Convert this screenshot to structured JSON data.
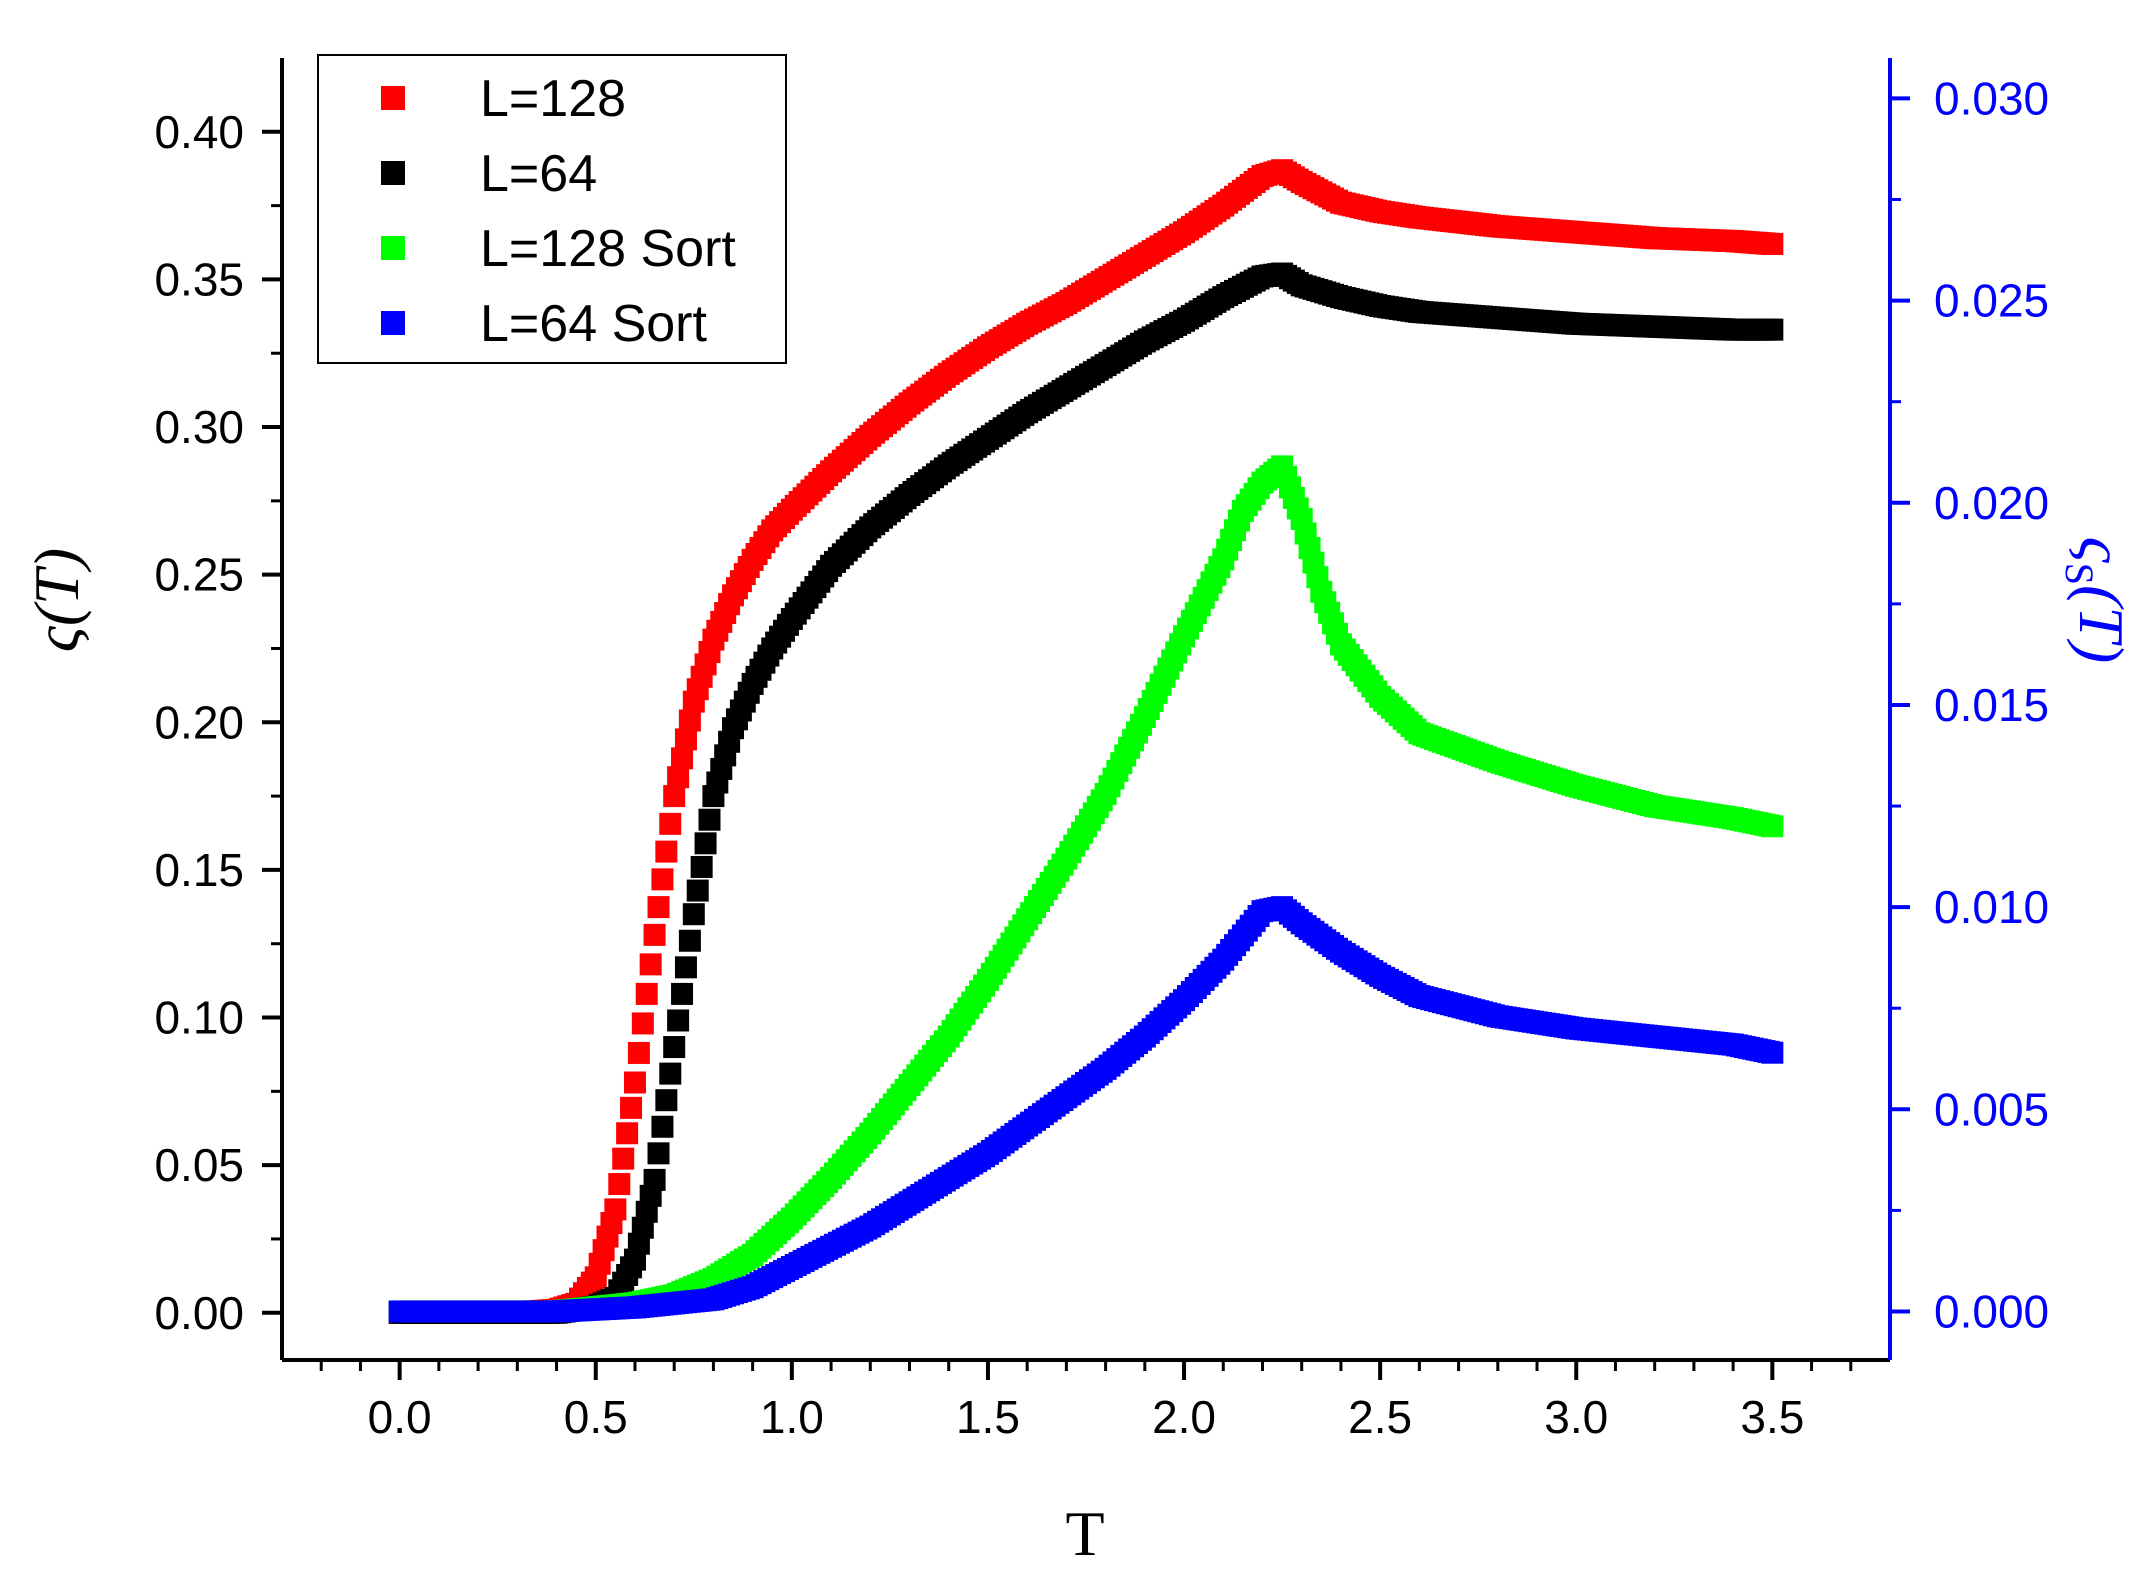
{
  "chart_data": {
    "type": "scatter",
    "title": "",
    "xlabel": "T",
    "ylabel_left": "ς(T)",
    "ylabel_right": "ς",
    "ylabel_right_subscript": "S",
    "ylabel_right_suffix": "(T)",
    "xlim": [
      -0.3,
      3.8
    ],
    "ylim_left": [
      -0.016,
      0.425
    ],
    "ylim_right": [
      -0.0012,
      0.031
    ],
    "x_ticks": [
      "0.0",
      "0.5",
      "1.0",
      "1.5",
      "2.0",
      "2.5",
      "3.0",
      "3.5"
    ],
    "x_tick_values": [
      0.0,
      0.5,
      1.0,
      1.5,
      2.0,
      2.5,
      3.0,
      3.5
    ],
    "y_left_ticks": [
      "0.00",
      "0.05",
      "0.10",
      "0.15",
      "0.20",
      "0.25",
      "0.30",
      "0.35",
      "0.40"
    ],
    "y_left_tick_values": [
      0.0,
      0.05,
      0.1,
      0.15,
      0.2,
      0.25,
      0.3,
      0.35,
      0.4
    ],
    "y_right_ticks": [
      "0.000",
      "0.005",
      "0.010",
      "0.015",
      "0.020",
      "0.025",
      "0.030"
    ],
    "y_right_tick_values": [
      0.0,
      0.005,
      0.01,
      0.015,
      0.02,
      0.025,
      0.03
    ],
    "legend_position": "top-left",
    "colors": {
      "right_axis": "#0000ff",
      "axis": "#000000"
    },
    "series": [
      {
        "name": "L=128",
        "axis": "left",
        "color": "#ff0000",
        "x": [
          0.0,
          0.2,
          0.3,
          0.4,
          0.45,
          0.5,
          0.55,
          0.6,
          0.65,
          0.7,
          0.75,
          0.8,
          0.85,
          0.9,
          0.95,
          1.0,
          1.1,
          1.2,
          1.3,
          1.4,
          1.5,
          1.6,
          1.7,
          1.8,
          1.9,
          2.0,
          2.1,
          2.2,
          2.25,
          2.3,
          2.4,
          2.5,
          2.6,
          2.8,
          3.0,
          3.2,
          3.4,
          3.5
        ],
        "y": [
          0.0,
          0.0,
          0.0,
          0.001,
          0.003,
          0.012,
          0.035,
          0.078,
          0.128,
          0.175,
          0.207,
          0.228,
          0.243,
          0.255,
          0.265,
          0.272,
          0.285,
          0.297,
          0.308,
          0.318,
          0.327,
          0.335,
          0.342,
          0.35,
          0.358,
          0.366,
          0.375,
          0.385,
          0.387,
          0.383,
          0.376,
          0.373,
          0.371,
          0.368,
          0.366,
          0.364,
          0.363,
          0.362
        ]
      },
      {
        "name": "L=64",
        "axis": "left",
        "color": "#000000",
        "x": [
          0.0,
          0.2,
          0.4,
          0.5,
          0.55,
          0.6,
          0.65,
          0.7,
          0.75,
          0.8,
          0.85,
          0.9,
          0.95,
          1.0,
          1.1,
          1.2,
          1.3,
          1.4,
          1.5,
          1.6,
          1.7,
          1.8,
          1.9,
          2.0,
          2.1,
          2.2,
          2.25,
          2.3,
          2.4,
          2.5,
          2.6,
          2.8,
          3.0,
          3.2,
          3.4,
          3.5
        ],
        "y": [
          0.0,
          0.0,
          0.0,
          0.002,
          0.005,
          0.018,
          0.045,
          0.09,
          0.135,
          0.175,
          0.198,
          0.213,
          0.225,
          0.235,
          0.253,
          0.266,
          0.277,
          0.287,
          0.296,
          0.305,
          0.313,
          0.321,
          0.329,
          0.336,
          0.344,
          0.351,
          0.352,
          0.348,
          0.344,
          0.341,
          0.339,
          0.337,
          0.335,
          0.334,
          0.333,
          0.333
        ]
      },
      {
        "name": "L=128 Sort",
        "axis": "right",
        "color": "#00ff00",
        "x": [
          0.0,
          0.2,
          0.4,
          0.5,
          0.6,
          0.7,
          0.8,
          0.9,
          1.0,
          1.1,
          1.2,
          1.3,
          1.4,
          1.5,
          1.6,
          1.7,
          1.8,
          1.9,
          2.0,
          2.1,
          2.15,
          2.2,
          2.25,
          2.3,
          2.35,
          2.4,
          2.5,
          2.6,
          2.8,
          3.0,
          3.2,
          3.4,
          3.5
        ],
        "y": [
          0.0,
          0.0,
          0.0,
          0.0001,
          0.0002,
          0.0004,
          0.0008,
          0.0014,
          0.0023,
          0.0033,
          0.0044,
          0.0056,
          0.0068,
          0.0082,
          0.0097,
          0.0112,
          0.0128,
          0.0147,
          0.0167,
          0.0186,
          0.0198,
          0.0205,
          0.0209,
          0.0196,
          0.0178,
          0.0165,
          0.0152,
          0.0143,
          0.0136,
          0.013,
          0.0125,
          0.0122,
          0.012
        ]
      },
      {
        "name": "L=64 Sort",
        "axis": "right",
        "color": "#0000ff",
        "x": [
          0.0,
          0.2,
          0.4,
          0.6,
          0.8,
          0.9,
          1.0,
          1.1,
          1.2,
          1.3,
          1.4,
          1.5,
          1.6,
          1.7,
          1.8,
          1.9,
          2.0,
          2.1,
          2.15,
          2.2,
          2.25,
          2.3,
          2.4,
          2.5,
          2.6,
          2.8,
          3.0,
          3.2,
          3.4,
          3.5
        ],
        "y": [
          0.0,
          0.0,
          0.0,
          0.0001,
          0.0003,
          0.0006,
          0.0011,
          0.0016,
          0.0021,
          0.0027,
          0.0033,
          0.0039,
          0.0046,
          0.0053,
          0.006,
          0.0068,
          0.0077,
          0.0087,
          0.0093,
          0.0099,
          0.01,
          0.0096,
          0.0089,
          0.0083,
          0.0078,
          0.0073,
          0.007,
          0.0068,
          0.0066,
          0.0064
        ]
      }
    ]
  }
}
